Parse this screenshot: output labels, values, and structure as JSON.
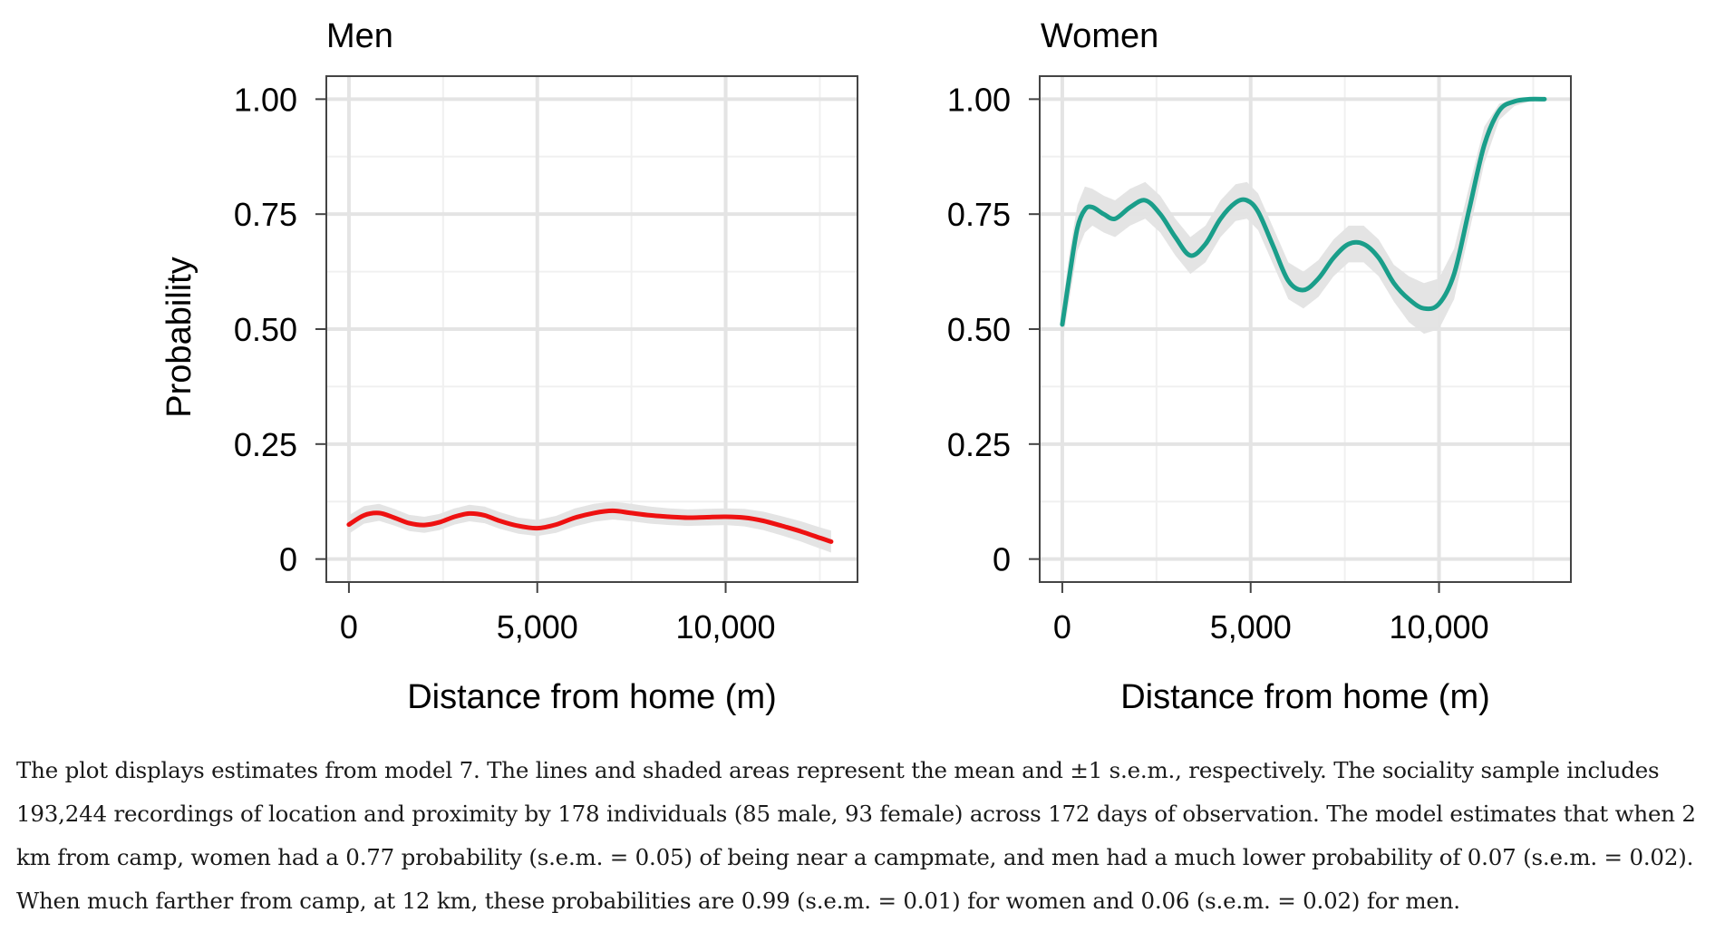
{
  "figure": {
    "ylabel": "Probability",
    "caption": "The plot displays estimates from model 7. The lines and shaded areas represent the mean and ±1 s.e.m., respectively. The sociality sample includes 193,244 recordings of location and proximity by 178 individuals (85 male, 93 female) across 172 days of observation. The model estimates that when 2 km from camp, women had a 0.77 probability (s.e.m. = 0.05) of being near a campmate, and men had a much lower probability of 0.07 (s.e.m. = 0.02). When much farther from camp, at 12 km, these probabilities are 0.99 (s.e.m. = 0.01) for women and 0.06 (s.e.m. = 0.02) for men."
  },
  "chart_data": [
    {
      "type": "line",
      "title": "Men",
      "xlabel": "Distance from home (m)",
      "ylabel": "Probability",
      "xlim": [
        -600,
        13500
      ],
      "ylim": [
        -0.05,
        1.05
      ],
      "xticks": [
        0,
        5000,
        10000
      ],
      "xtick_labels": [
        "0",
        "5,000",
        "10,000"
      ],
      "yticks": [
        0,
        0.25,
        0.5,
        0.75,
        1.0
      ],
      "ytick_labels": [
        "0",
        "0.25",
        "0.50",
        "0.75",
        "1.00"
      ],
      "grid": true,
      "color": "#ee1111",
      "band_color": "#e3e3e3",
      "series": [
        {
          "name": "Men mean ±1 s.e.m.",
          "x": [
            0,
            400,
            800,
            1200,
            1600,
            2000,
            2400,
            2800,
            3200,
            3600,
            4000,
            4500,
            5000,
            5500,
            6000,
            6500,
            7000,
            7500,
            8000,
            8500,
            9000,
            9500,
            10000,
            10500,
            11000,
            11500,
            12000,
            12500,
            12800
          ],
          "y": [
            0.075,
            0.095,
            0.1,
            0.09,
            0.078,
            0.074,
            0.08,
            0.092,
            0.099,
            0.095,
            0.083,
            0.072,
            0.067,
            0.075,
            0.09,
            0.1,
            0.105,
            0.1,
            0.095,
            0.092,
            0.09,
            0.091,
            0.092,
            0.09,
            0.083,
            0.072,
            0.06,
            0.046,
            0.038
          ],
          "lower": [
            0.055,
            0.077,
            0.083,
            0.073,
            0.061,
            0.057,
            0.063,
            0.075,
            0.082,
            0.078,
            0.066,
            0.055,
            0.05,
            0.057,
            0.071,
            0.081,
            0.086,
            0.082,
            0.077,
            0.074,
            0.072,
            0.073,
            0.074,
            0.071,
            0.063,
            0.051,
            0.038,
            0.023,
            0.014
          ],
          "upper": [
            0.095,
            0.115,
            0.12,
            0.109,
            0.096,
            0.092,
            0.098,
            0.11,
            0.118,
            0.114,
            0.102,
            0.09,
            0.085,
            0.094,
            0.11,
            0.12,
            0.125,
            0.12,
            0.114,
            0.11,
            0.108,
            0.109,
            0.11,
            0.109,
            0.103,
            0.093,
            0.082,
            0.069,
            0.062
          ]
        }
      ]
    },
    {
      "type": "line",
      "title": "Women",
      "xlabel": "Distance from home (m)",
      "ylabel": "",
      "xlim": [
        -600,
        13500
      ],
      "ylim": [
        -0.05,
        1.05
      ],
      "xticks": [
        0,
        5000,
        10000
      ],
      "xtick_labels": [
        "0",
        "5,000",
        "10,000"
      ],
      "yticks": [
        0,
        0.25,
        0.5,
        0.75,
        1.0
      ],
      "ytick_labels": [
        "0",
        "0.25",
        "0.50",
        "0.75",
        "1.00"
      ],
      "grid": true,
      "color": "#1a9e8a",
      "band_color": "#e3e3e3",
      "series": [
        {
          "name": "Women mean ±1 s.e.m.",
          "x": [
            0,
            200,
            400,
            600,
            800,
            1100,
            1400,
            1800,
            2200,
            2600,
            3000,
            3400,
            3800,
            4200,
            4600,
            4900,
            5200,
            5600,
            6000,
            6400,
            6800,
            7200,
            7600,
            8000,
            8400,
            8800,
            9200,
            9600,
            10000,
            10400,
            10800,
            11200,
            11600,
            12000,
            12400,
            12800
          ],
          "y": [
            0.51,
            0.62,
            0.72,
            0.76,
            0.765,
            0.75,
            0.74,
            0.765,
            0.78,
            0.75,
            0.7,
            0.66,
            0.685,
            0.74,
            0.775,
            0.78,
            0.755,
            0.68,
            0.605,
            0.585,
            0.61,
            0.655,
            0.685,
            0.685,
            0.655,
            0.6,
            0.565,
            0.545,
            0.555,
            0.62,
            0.76,
            0.9,
            0.975,
            0.995,
            1.0,
            1.0
          ],
          "lower": [
            0.47,
            0.57,
            0.67,
            0.71,
            0.725,
            0.71,
            0.7,
            0.725,
            0.74,
            0.71,
            0.66,
            0.62,
            0.645,
            0.7,
            0.735,
            0.74,
            0.715,
            0.64,
            0.565,
            0.545,
            0.57,
            0.615,
            0.645,
            0.645,
            0.615,
            0.56,
            0.515,
            0.49,
            0.5,
            0.565,
            0.71,
            0.86,
            0.955,
            0.985,
            0.995,
            0.996
          ],
          "upper": [
            0.55,
            0.67,
            0.77,
            0.81,
            0.805,
            0.79,
            0.78,
            0.805,
            0.82,
            0.79,
            0.74,
            0.7,
            0.725,
            0.78,
            0.815,
            0.82,
            0.795,
            0.72,
            0.645,
            0.625,
            0.65,
            0.695,
            0.725,
            0.725,
            0.695,
            0.64,
            0.615,
            0.6,
            0.61,
            0.675,
            0.81,
            0.94,
            0.99,
            1.0,
            1.004,
            1.004
          ]
        }
      ]
    }
  ]
}
